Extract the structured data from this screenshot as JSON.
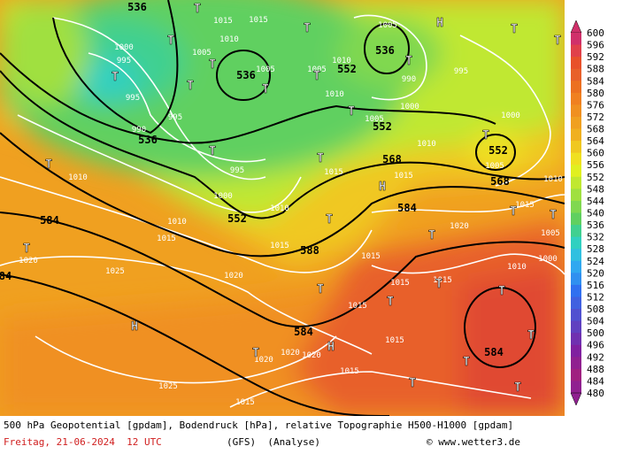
{
  "map": {
    "height_labels": [
      "536",
      "536",
      "536",
      "536",
      "552",
      "552",
      "552",
      "552",
      "568",
      "568",
      "584",
      "584",
      "588",
      "584",
      "584",
      "84"
    ],
    "pressure_labels": [
      "1015",
      "1015",
      "1010",
      "1000",
      "995",
      "995",
      "1005",
      "1005",
      "1005",
      "1005",
      "1010",
      "1010",
      "990",
      "1000",
      "995",
      "1005",
      "1000",
      "1010",
      "1005",
      "995",
      "1000",
      "1015",
      "1015",
      "1010",
      "1010",
      "1010",
      "1015",
      "1020",
      "1025",
      "1020",
      "1015",
      "1015",
      "1020",
      "1015",
      "1005",
      "1000",
      "1010",
      "1015",
      "1015",
      "1015",
      "1015",
      "1020",
      "1020",
      "1020",
      "1015",
      "1025",
      "1015",
      "990",
      "995",
      "1010"
    ],
    "pressure_centers": [
      "H",
      "H",
      "H",
      "H",
      "T",
      "T",
      "T",
      "T",
      "T",
      "T",
      "T",
      "T",
      "T",
      "T",
      "T",
      "T",
      "T",
      "T",
      "T",
      "T",
      "T",
      "T",
      "T",
      "T",
      "T",
      "T",
      "T",
      "T",
      "T",
      "T",
      "T",
      "T",
      "T",
      "T"
    ]
  },
  "colorbar": {
    "labels": [
      "600",
      "596",
      "592",
      "588",
      "584",
      "580",
      "576",
      "572",
      "568",
      "564",
      "560",
      "556",
      "552",
      "548",
      "544",
      "540",
      "536",
      "532",
      "528",
      "524",
      "520",
      "516",
      "512",
      "508",
      "504",
      "500",
      "496",
      "492",
      "488",
      "484",
      "480"
    ],
    "colors": [
      "#d0306a",
      "#e0404a",
      "#e8502a",
      "#e8602a",
      "#ec7020",
      "#f08020",
      "#f09020",
      "#f0a020",
      "#f0b020",
      "#f0c820",
      "#f0e020",
      "#e0f020",
      "#c0e830",
      "#a0e040",
      "#80d850",
      "#60d060",
      "#40d090",
      "#30d0c0",
      "#30c0e0",
      "#30a8f0",
      "#3090f0",
      "#3070f0",
      "#4060e0",
      "#5050d0",
      "#6040c0",
      "#7030b0",
      "#8020a0",
      "#902090",
      "#a02080",
      "#902090"
    ]
  },
  "footer": {
    "line1": "500 hPa Geopotential [gpdam], Bodendruck [hPa], relative Topographie H500-H1000 [gpdam]",
    "date": "Freitag, 21-06-2024  12 UTC",
    "model": "(GFS)  (Analyse)",
    "copyright": "© www.wetter3.de"
  }
}
